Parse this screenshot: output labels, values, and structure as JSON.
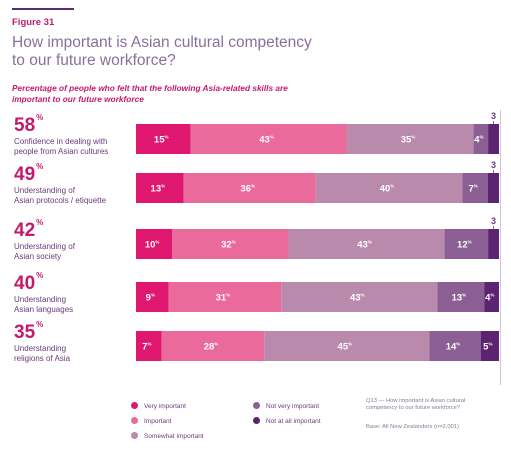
{
  "figure_label": "Figure 31",
  "title": "How important is Asian cultural competency to our future workforce?",
  "subtitle": "Percentage of people who felt that the following Asia-related skills are important to our future workforce",
  "colors": {
    "very_important": "#e0176f",
    "important": "#ea6a9b",
    "somewhat_important": "#b98aab",
    "not_very_important": "#8c5f94",
    "not_at_all_important": "#5c2470",
    "text_purple": "#6b3a7c",
    "accent": "#c31a6d"
  },
  "chart_data": {
    "type": "bar",
    "orientation": "horizontal-stacked-100",
    "title": "How important is Asian cultural competency to our future workforce?",
    "categories": [
      "Confidence in dealing with people from Asian cultures",
      "Understanding of Asian protocols / etiquette",
      "Understanding of Asian society",
      "Understanding Asian languages",
      "Understanding religions of Asia"
    ],
    "headline_percentages": [
      58,
      49,
      42,
      40,
      35
    ],
    "percent_symbol": "%",
    "series": [
      {
        "name": "Very important",
        "values": [
          15,
          13,
          10,
          9,
          7
        ]
      },
      {
        "name": "Important",
        "values": [
          43,
          36,
          32,
          31,
          28
        ]
      },
      {
        "name": "Somewhat important",
        "values": [
          35,
          40,
          43,
          43,
          45
        ]
      },
      {
        "name": "Not very important",
        "values": [
          4,
          7,
          12,
          13,
          14
        ]
      },
      {
        "name": "Not at all important",
        "values": [
          3,
          3,
          3,
          4,
          5
        ]
      }
    ],
    "grid": false,
    "legend_position": "bottom"
  },
  "rows_display": [
    {
      "pct": "58",
      "label_lines": [
        "Confidence in dealing with",
        "people from Asian cultures"
      ]
    },
    {
      "pct": "49",
      "label_lines": [
        "Understanding of",
        "Asian protocols / etiquette"
      ]
    },
    {
      "pct": "42",
      "label_lines": [
        "Understanding of",
        "Asian society"
      ]
    },
    {
      "pct": "40",
      "label_lines": [
        "Understanding",
        "Asian languages"
      ]
    },
    {
      "pct": "35",
      "label_lines": [
        "Understanding",
        "religions of Asia"
      ]
    }
  ],
  "legend": [
    "Very important",
    "Important",
    "Somewhat important",
    "Not very important",
    "Not at all important"
  ],
  "notes": {
    "question": "Q13 — How important is Asian cultural competency to our future workforce?",
    "base": "Base: All New Zealanders (n=2,001)"
  }
}
